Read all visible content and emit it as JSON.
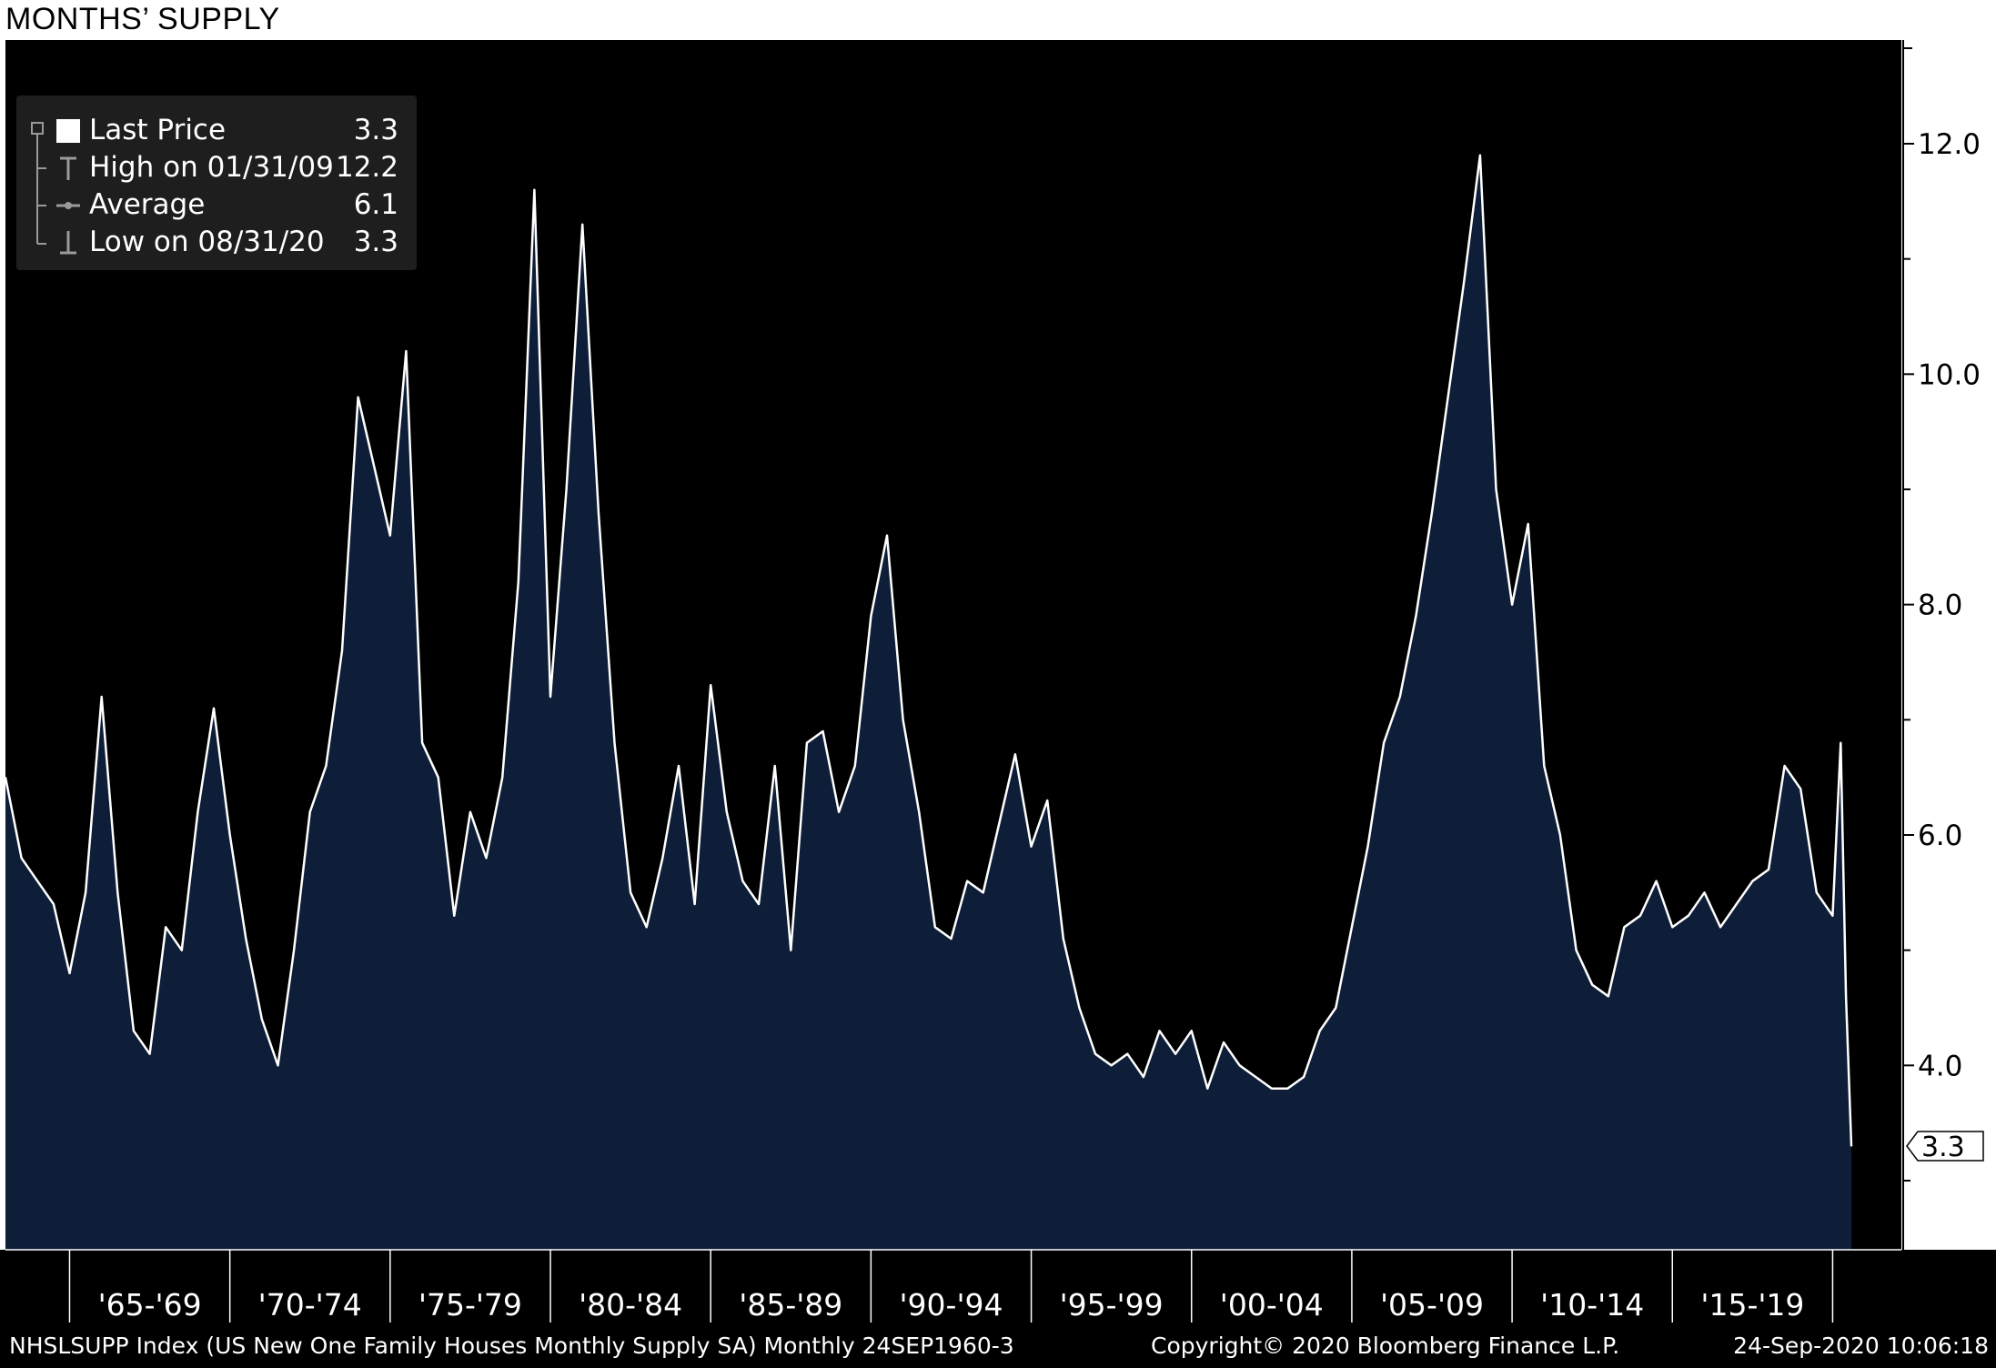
{
  "page_title": "MONTHS’ SUPPLY",
  "footer": {
    "left": "NHSLSUPP Index (US New One Family Houses Monthly Supply SA)  Monthly 24SEP1960-3",
    "center": "Copyright© 2020 Bloomberg Finance L.P.",
    "right": "24-Sep-2020 10:06:18"
  },
  "legend": {
    "items": [
      {
        "label": "Last Price",
        "value": "3.3"
      },
      {
        "label": "High on 01/31/09",
        "value": "12.2"
      },
      {
        "label": "Average",
        "value": "6.1"
      },
      {
        "label": "Low on 08/31/20",
        "value": "3.3"
      }
    ]
  },
  "colors": {
    "background": "#000000",
    "area_fill": "#0e1e38",
    "line": "#ffffff",
    "legend_bg": "#1e1e1e"
  },
  "chart_data": {
    "type": "area",
    "x_start": "1963-01",
    "x_end": "2020-08",
    "x_tick_labels": [
      "'65-'69",
      "'70-'74",
      "'75-'79",
      "'80-'84",
      "'85-'89",
      "'90-'94",
      "'95-'99",
      "'00-'04",
      "'05-'09",
      "'10-'14",
      "'15-'19"
    ],
    "y_tick_labels": [
      "4.0",
      "6.0",
      "8.0",
      "10.0",
      "12.0"
    ],
    "ylim": [
      2.4,
      12.9
    ],
    "last_price_label": "3.3",
    "grid": false,
    "legend_position": "top-left",
    "series": [
      {
        "name": "Last Price",
        "x": [
          "1963-01",
          "1963-07",
          "1964-01",
          "1964-07",
          "1965-01",
          "1965-07",
          "1966-01",
          "1966-07",
          "1967-01",
          "1967-07",
          "1968-01",
          "1968-07",
          "1969-01",
          "1969-07",
          "1970-01",
          "1970-07",
          "1971-01",
          "1971-07",
          "1972-01",
          "1972-07",
          "1973-01",
          "1973-07",
          "1974-01",
          "1974-07",
          "1975-01",
          "1975-07",
          "1976-01",
          "1976-07",
          "1977-01",
          "1977-07",
          "1978-01",
          "1978-07",
          "1979-01",
          "1979-07",
          "1980-01",
          "1980-07",
          "1981-01",
          "1981-07",
          "1982-01",
          "1982-07",
          "1983-01",
          "1983-07",
          "1984-01",
          "1984-07",
          "1985-01",
          "1985-07",
          "1986-01",
          "1986-07",
          "1987-01",
          "1987-07",
          "1988-01",
          "1988-07",
          "1989-01",
          "1989-07",
          "1990-01",
          "1990-07",
          "1991-01",
          "1991-07",
          "1992-01",
          "1992-07",
          "1993-01",
          "1993-07",
          "1994-01",
          "1994-07",
          "1995-01",
          "1995-07",
          "1996-01",
          "1996-07",
          "1997-01",
          "1997-07",
          "1998-01",
          "1998-07",
          "1999-01",
          "1999-07",
          "2000-01",
          "2000-07",
          "2001-01",
          "2001-07",
          "2002-01",
          "2002-07",
          "2003-01",
          "2003-07",
          "2004-01",
          "2004-07",
          "2005-01",
          "2005-07",
          "2006-01",
          "2006-07",
          "2007-01",
          "2007-07",
          "2008-01",
          "2008-07",
          "2009-01",
          "2009-07",
          "2010-01",
          "2010-07",
          "2011-01",
          "2011-07",
          "2012-01",
          "2012-07",
          "2013-01",
          "2013-07",
          "2014-01",
          "2014-07",
          "2015-01",
          "2015-07",
          "2016-01",
          "2016-07",
          "2017-01",
          "2017-07",
          "2018-01",
          "2018-07",
          "2019-01",
          "2019-07",
          "2020-01",
          "2020-04",
          "2020-06",
          "2020-08"
        ],
        "values": [
          6.5,
          5.8,
          5.6,
          5.4,
          4.8,
          5.5,
          7.2,
          5.5,
          4.3,
          4.1,
          5.2,
          5.0,
          6.2,
          7.1,
          6.0,
          5.1,
          4.4,
          4.0,
          5.0,
          6.2,
          6.6,
          7.6,
          9.8,
          9.2,
          8.6,
          10.2,
          6.8,
          6.5,
          5.3,
          6.2,
          5.8,
          6.5,
          8.2,
          11.6,
          7.2,
          9.0,
          11.3,
          8.8,
          6.8,
          5.5,
          5.2,
          5.8,
          6.6,
          5.4,
          7.3,
          6.2,
          5.6,
          5.4,
          6.6,
          5.0,
          6.8,
          6.9,
          6.2,
          6.6,
          7.9,
          8.6,
          7.0,
          6.2,
          5.2,
          5.1,
          5.6,
          5.5,
          6.1,
          6.7,
          5.9,
          6.3,
          5.1,
          4.5,
          4.1,
          4.0,
          4.1,
          3.9,
          4.3,
          4.1,
          4.3,
          3.8,
          4.2,
          4.0,
          3.9,
          3.8,
          3.8,
          3.9,
          4.3,
          4.5,
          5.2,
          5.9,
          6.8,
          7.2,
          7.9,
          8.8,
          9.8,
          10.8,
          11.9,
          9.0,
          8.0,
          8.7,
          6.6,
          6.0,
          5.0,
          4.7,
          4.6,
          5.2,
          5.3,
          5.6,
          5.2,
          5.3,
          5.5,
          5.2,
          5.4,
          5.6,
          5.7,
          6.6,
          6.4,
          5.5,
          5.3,
          6.8,
          4.6,
          3.3
        ]
      }
    ]
  }
}
